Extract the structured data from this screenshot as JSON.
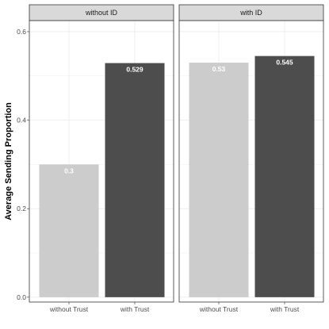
{
  "chart_data": {
    "type": "bar",
    "ylabel": "Average Sending Proportion",
    "xlabel": "",
    "ylim": [
      -0.011,
      0.625
    ],
    "y_ticks": [
      0.0,
      0.2,
      0.4,
      0.6
    ],
    "y_tick_labels": [
      "0.0",
      "0.2",
      "0.4",
      "0.6"
    ],
    "grid": true,
    "legend": "none",
    "categories": [
      "without Trust",
      "with Trust"
    ],
    "facets": [
      {
        "strip": "without ID",
        "values": [
          0.3,
          0.529
        ],
        "labels": [
          "0.3",
          "0.529"
        ]
      },
      {
        "strip": "with ID",
        "values": [
          0.53,
          0.545
        ],
        "labels": [
          "0.53",
          "0.545"
        ]
      }
    ],
    "bar_colors": [
      "#cccccc",
      "#4d4d4d"
    ]
  }
}
